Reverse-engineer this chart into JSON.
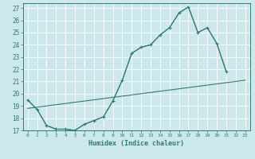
{
  "xlabel": "Humidex (Indice chaleur)",
  "bg_color": "#cce8ec",
  "grid_color": "#ffffff",
  "line_color": "#2e7d72",
  "xlim": [
    -0.5,
    23.5
  ],
  "ylim": [
    17,
    27.4
  ],
  "yticks": [
    17,
    18,
    19,
    20,
    21,
    22,
    23,
    24,
    25,
    26,
    27
  ],
  "xticks": [
    0,
    1,
    2,
    3,
    4,
    5,
    6,
    7,
    8,
    9,
    10,
    11,
    12,
    13,
    14,
    15,
    16,
    17,
    18,
    19,
    20,
    21,
    22,
    23
  ],
  "main_x": [
    0,
    1,
    2,
    3,
    4,
    5,
    6,
    7,
    8,
    9,
    10,
    11,
    12,
    13,
    14,
    15,
    16,
    17,
    18,
    19,
    20,
    21
  ],
  "main_y": [
    19.5,
    18.7,
    17.4,
    17.1,
    17.1,
    17.0,
    17.5,
    17.8,
    18.1,
    19.4,
    21.1,
    23.3,
    23.8,
    24.0,
    24.8,
    25.4,
    26.6,
    27.1,
    25.0,
    25.4,
    24.1,
    21.8
  ],
  "trend_x": [
    0,
    23
  ],
  "trend_y": [
    18.8,
    21.1
  ],
  "smooth_x": [
    0,
    1,
    2,
    3,
    4,
    5,
    6,
    7,
    8,
    9,
    10,
    11,
    12,
    13,
    14,
    15,
    16,
    17,
    18,
    19,
    20,
    21
  ],
  "smooth_y": [
    19.5,
    18.7,
    17.4,
    17.1,
    17.1,
    17.0,
    17.5,
    17.8,
    18.1,
    19.4,
    21.1,
    23.3,
    23.8,
    24.0,
    24.8,
    25.4,
    26.6,
    27.1,
    25.0,
    25.4,
    24.1,
    21.8
  ]
}
